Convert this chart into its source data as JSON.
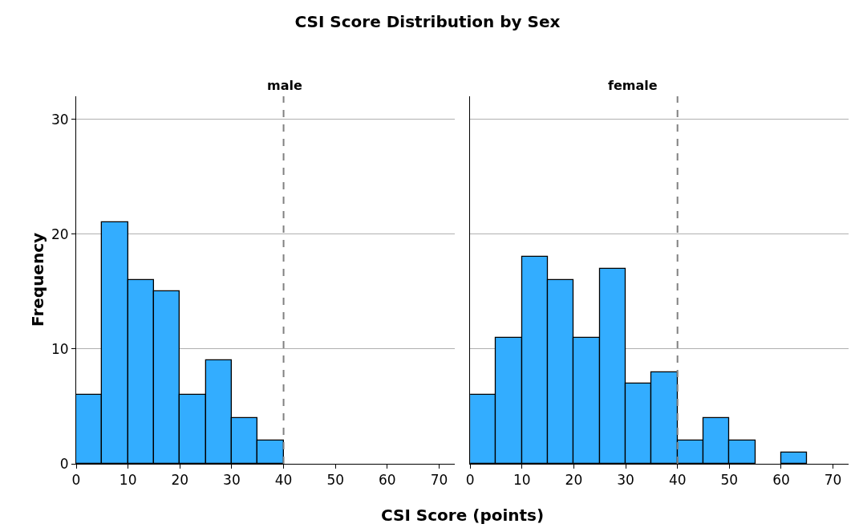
{
  "chart_data": [
    {
      "type": "histogram",
      "title": "CSI Score Distribution by Sex",
      "subtitle": "male",
      "xlabel": "CSI Score (points)",
      "ylabel": "Frequency",
      "bins": [
        0,
        5,
        10,
        15,
        20,
        25,
        30,
        35,
        40
      ],
      "values": [
        6,
        21,
        16,
        15,
        6,
        9,
        4,
        2
      ],
      "color": "#33adff",
      "xlim": [
        0,
        73
      ],
      "xticks": [
        0,
        10,
        20,
        30,
        40,
        50,
        60,
        70
      ],
      "ylim": [
        0,
        32
      ],
      "yticks": [
        0,
        10,
        20,
        30
      ],
      "grid": "y",
      "ref_lines": [
        {
          "axis": "x",
          "value": 40,
          "color": "#808080",
          "line_style": "dashed"
        }
      ]
    },
    {
      "type": "histogram",
      "subtitle": "female",
      "bins": [
        0,
        5,
        10,
        15,
        20,
        25,
        30,
        35,
        40,
        45,
        50,
        55,
        60,
        65
      ],
      "values": [
        6,
        11,
        18,
        16,
        11,
        17,
        7,
        8,
        2,
        4,
        2,
        0,
        1
      ],
      "color": "#33adff",
      "xlim": [
        0,
        73
      ],
      "xticks": [
        0,
        10,
        20,
        30,
        40,
        50,
        60,
        70
      ],
      "ylim": [
        0,
        32
      ],
      "yticks": [
        0,
        10,
        20,
        30
      ],
      "grid": "y",
      "tick_labels": "x",
      "ref_lines": [
        {
          "axis": "x",
          "value": 40,
          "color": "#808080",
          "line_style": "dashed"
        }
      ]
    }
  ]
}
